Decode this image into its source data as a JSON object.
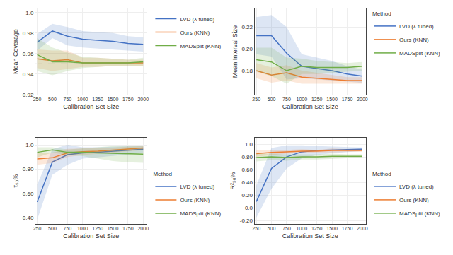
{
  "chart_data": [
    {
      "type": "line",
      "x": [
        250,
        500,
        750,
        1000,
        1250,
        1500,
        1750,
        2000
      ],
      "xlabel": "Calibration Set Size",
      "ylabel": "Mean Coverage",
      "xlim": [
        220,
        2060
      ],
      "xticks": [
        250,
        500,
        750,
        1000,
        1250,
        1500,
        1750,
        2000
      ],
      "ylim": [
        0.92,
        1.004
      ],
      "yticks": [
        0.92,
        0.94,
        0.96,
        0.98,
        {
          "value": 1,
          "label": "1.0"
        }
      ],
      "grid": true,
      "legend": "upper right",
      "hline": {
        "y": 0.95,
        "line_style": "dashed"
      },
      "series": [
        {
          "name": "LVD (λ tuned)",
          "color": "#4472c4",
          "values": [
            0.971,
            0.982,
            0.977,
            0.974,
            0.973,
            0.972,
            0.97,
            0.969
          ],
          "lower": [
            0.963,
            0.975,
            0.968,
            0.966,
            0.965,
            0.964,
            0.963,
            0.962
          ],
          "upper": [
            0.979,
            0.989,
            0.986,
            0.982,
            0.981,
            0.98,
            0.977,
            0.976
          ]
        },
        {
          "name": "Ours (KNN)",
          "color": "#ed7d31",
          "values": [
            0.955,
            0.953,
            0.954,
            0.951,
            0.951,
            0.951,
            0.951,
            0.951
          ],
          "lower": [
            0.946,
            0.943,
            0.945,
            0.947,
            0.947,
            0.948,
            0.948,
            0.948
          ],
          "upper": [
            0.964,
            0.963,
            0.963,
            0.956,
            0.956,
            0.955,
            0.954,
            0.954
          ]
        },
        {
          "name": "MADSplit (KNN)",
          "color": "#70ad47",
          "values": [
            0.959,
            0.952,
            0.952,
            0.951,
            0.951,
            0.951,
            0.951,
            0.952
          ],
          "lower": [
            0.943,
            0.939,
            0.943,
            0.946,
            0.947,
            0.948,
            0.948,
            0.948
          ],
          "upper": [
            0.975,
            0.966,
            0.961,
            0.957,
            0.956,
            0.955,
            0.954,
            0.956
          ]
        }
      ]
    },
    {
      "type": "line",
      "x": [
        250,
        500,
        750,
        1000,
        1250,
        1500,
        1750,
        2000
      ],
      "xlabel": "Calibration Set Size",
      "ylabel": "Mean Interval Size",
      "xlim": [
        220,
        2060
      ],
      "xticks": [
        250,
        500,
        750,
        1000,
        1250,
        1500,
        1750,
        2000
      ],
      "ylim": [
        0.158,
        0.237
      ],
      "yticks": [
        0.18,
        {
          "value": 0.2,
          "label": "0.20"
        },
        0.22
      ],
      "grid": true,
      "legend": "upper right",
      "legend_title": "Method",
      "series": [
        {
          "name": "LVD (λ tuned)",
          "color": "#4472c4",
          "values": [
            0.212,
            0.212,
            0.196,
            0.184,
            0.182,
            0.18,
            0.177,
            0.175
          ],
          "lower": [
            0.195,
            0.193,
            0.172,
            0.173,
            0.172,
            0.171,
            0.17,
            0.169
          ],
          "upper": [
            0.229,
            0.231,
            0.22,
            0.195,
            0.192,
            0.189,
            0.184,
            0.181
          ]
        },
        {
          "name": "Ours (KNN)",
          "color": "#ed7d31",
          "values": [
            0.18,
            0.176,
            0.178,
            0.174,
            0.173,
            0.172,
            0.171,
            0.171
          ],
          "lower": [
            0.173,
            0.169,
            0.171,
            0.168,
            0.168,
            0.168,
            0.168,
            0.168
          ],
          "upper": [
            0.187,
            0.183,
            0.185,
            0.18,
            0.178,
            0.176,
            0.174,
            0.174
          ]
        },
        {
          "name": "MADSplit (KNN)",
          "color": "#70ad47",
          "values": [
            0.19,
            0.188,
            0.18,
            0.184,
            0.183,
            0.183,
            0.183,
            0.184
          ],
          "lower": [
            0.179,
            0.175,
            0.168,
            0.177,
            0.177,
            0.178,
            0.179,
            0.18
          ],
          "upper": [
            0.201,
            0.201,
            0.192,
            0.191,
            0.189,
            0.188,
            0.187,
            0.188
          ]
        }
      ]
    },
    {
      "type": "line",
      "x": [
        250,
        500,
        750,
        1000,
        1250,
        1500,
        1750,
        2000
      ],
      "xlabel": "Calibration Set Size",
      "ylabel": "τ₅₀%",
      "xlim": [
        220,
        2060
      ],
      "xticks": [
        250,
        500,
        750,
        1000,
        1250,
        1500,
        1750,
        2000
      ],
      "ylim": [
        0.35,
        1.06
      ],
      "yticks": [
        {
          "value": 0.4,
          "label": "0.40"
        },
        {
          "value": 0.6,
          "label": "0.60"
        },
        {
          "value": 0.8,
          "label": "0.80"
        },
        {
          "value": 1,
          "label": "1.0"
        }
      ],
      "grid": true,
      "legend": "lower right",
      "legend_title": "Method",
      "series": [
        {
          "name": "LVD (λ tuned)",
          "color": "#4472c4",
          "values": [
            0.53,
            0.86,
            0.92,
            0.935,
            0.94,
            0.948,
            0.955,
            0.965
          ],
          "lower": [
            0.385,
            0.755,
            0.838,
            0.888,
            0.898,
            0.91,
            0.922,
            0.935
          ],
          "upper": [
            0.675,
            0.965,
            1.002,
            0.982,
            0.982,
            0.986,
            0.988,
            0.995
          ]
        },
        {
          "name": "Ours (KNN)",
          "color": "#ed7d31",
          "values": [
            0.885,
            0.895,
            0.935,
            0.945,
            0.95,
            0.958,
            0.968,
            0.975
          ],
          "lower": [
            0.838,
            0.852,
            0.902,
            0.918,
            0.928,
            0.938,
            0.95,
            0.958
          ],
          "upper": [
            0.932,
            0.938,
            0.968,
            0.972,
            0.972,
            0.978,
            0.986,
            0.992
          ]
        },
        {
          "name": "MADSplit (KNN)",
          "color": "#70ad47",
          "values": [
            0.94,
            0.96,
            0.94,
            0.94,
            0.935,
            0.93,
            0.926,
            0.924
          ],
          "lower": [
            0.898,
            0.938,
            0.918,
            0.908,
            0.888,
            0.868,
            0.858,
            0.853
          ],
          "upper": [
            0.982,
            0.982,
            0.962,
            0.972,
            0.982,
            0.992,
            0.994,
            0.995
          ]
        }
      ]
    },
    {
      "type": "line",
      "x": [
        250,
        500,
        750,
        1000,
        1250,
        1500,
        1750,
        2000
      ],
      "xlabel": "Calibration Set Size",
      "ylabel": "R²₅₀%",
      "xlim": [
        220,
        2060
      ],
      "xticks": [
        250,
        500,
        750,
        1000,
        1250,
        1500,
        1750,
        2000
      ],
      "ylim": [
        -0.25,
        1.1
      ],
      "yticks": [
        {
          "value": -0.2,
          "label": "-0.20"
        },
        {
          "value": 0,
          "label": "0.0"
        },
        {
          "value": 0.2,
          "label": "0.20"
        },
        {
          "value": 0.4,
          "label": "0.40"
        },
        {
          "value": 0.6,
          "label": "0.60"
        },
        {
          "value": 0.8,
          "label": "0.80"
        },
        {
          "value": 1,
          "label": "1.0"
        }
      ],
      "grid": true,
      "legend": "lower right",
      "legend_title": "Method",
      "series": [
        {
          "name": "LVD (λ tuned)",
          "color": "#4472c4",
          "values": [
            0.1,
            0.62,
            0.8,
            0.88,
            0.9,
            0.91,
            0.915,
            0.92
          ],
          "lower": [
            -0.15,
            0.3,
            0.62,
            0.78,
            0.83,
            0.86,
            0.88,
            0.892
          ],
          "upper": [
            0.35,
            0.94,
            0.98,
            0.98,
            0.97,
            0.96,
            0.95,
            0.948
          ]
        },
        {
          "name": "Ours (KNN)",
          "color": "#ed7d31",
          "values": [
            0.85,
            0.87,
            0.88,
            0.89,
            0.89,
            0.9,
            0.9,
            0.9
          ],
          "lower": [
            0.8,
            0.83,
            0.85,
            0.86,
            0.87,
            0.87,
            0.88,
            0.88
          ],
          "upper": [
            0.9,
            0.91,
            0.91,
            0.92,
            0.91,
            0.93,
            0.92,
            0.92
          ]
        },
        {
          "name": "MADSplit (KNN)",
          "color": "#70ad47",
          "values": [
            0.79,
            0.8,
            0.79,
            0.8,
            0.8,
            0.81,
            0.81,
            0.81
          ],
          "lower": [
            0.73,
            0.75,
            0.74,
            0.76,
            0.76,
            0.77,
            0.78,
            0.78
          ],
          "upper": [
            0.85,
            0.85,
            0.84,
            0.84,
            0.84,
            0.85,
            0.84,
            0.84
          ]
        }
      ]
    }
  ]
}
